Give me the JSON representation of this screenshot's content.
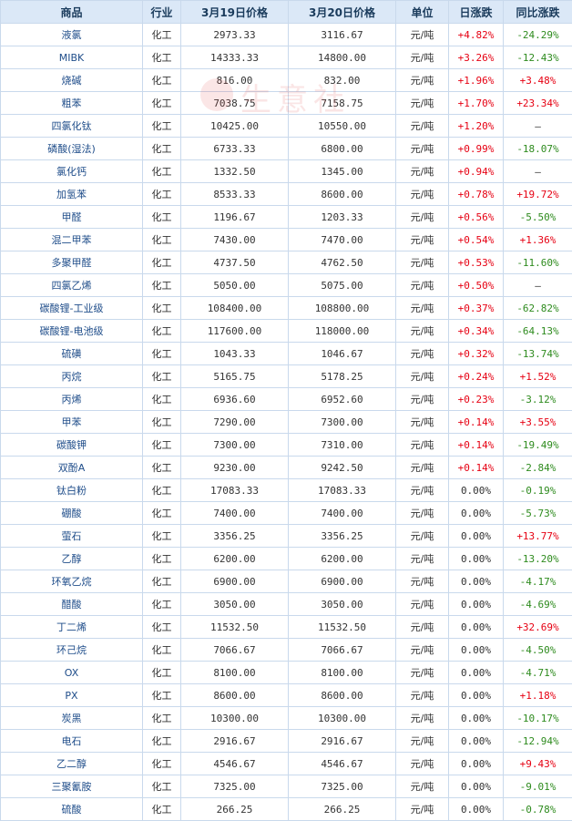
{
  "headers": [
    "商品",
    "行业",
    "3月19日价格",
    "3月20日价格",
    "单位",
    "日涨跌",
    "同比涨跌"
  ],
  "watermark": "生意社",
  "rows": [
    {
      "name": "液氯",
      "industry": "化工",
      "p19": "2973.33",
      "p20": "3116.67",
      "unit": "元/吨",
      "daily": "+4.82%",
      "yoy": "-24.29%"
    },
    {
      "name": "MIBK",
      "industry": "化工",
      "p19": "14333.33",
      "p20": "14800.00",
      "unit": "元/吨",
      "daily": "+3.26%",
      "yoy": "-12.43%"
    },
    {
      "name": "烧碱",
      "industry": "化工",
      "p19": "816.00",
      "p20": "832.00",
      "unit": "元/吨",
      "daily": "+1.96%",
      "yoy": "+3.48%"
    },
    {
      "name": "粗苯",
      "industry": "化工",
      "p19": "7038.75",
      "p20": "7158.75",
      "unit": "元/吨",
      "daily": "+1.70%",
      "yoy": "+23.34%"
    },
    {
      "name": "四氯化钛",
      "industry": "化工",
      "p19": "10425.00",
      "p20": "10550.00",
      "unit": "元/吨",
      "daily": "+1.20%",
      "yoy": "—"
    },
    {
      "name": "磷酸(湿法)",
      "industry": "化工",
      "p19": "6733.33",
      "p20": "6800.00",
      "unit": "元/吨",
      "daily": "+0.99%",
      "yoy": "-18.07%"
    },
    {
      "name": "氯化钙",
      "industry": "化工",
      "p19": "1332.50",
      "p20": "1345.00",
      "unit": "元/吨",
      "daily": "+0.94%",
      "yoy": "—"
    },
    {
      "name": "加氢苯",
      "industry": "化工",
      "p19": "8533.33",
      "p20": "8600.00",
      "unit": "元/吨",
      "daily": "+0.78%",
      "yoy": "+19.72%"
    },
    {
      "name": "甲醛",
      "industry": "化工",
      "p19": "1196.67",
      "p20": "1203.33",
      "unit": "元/吨",
      "daily": "+0.56%",
      "yoy": "-5.50%"
    },
    {
      "name": "混二甲苯",
      "industry": "化工",
      "p19": "7430.00",
      "p20": "7470.00",
      "unit": "元/吨",
      "daily": "+0.54%",
      "yoy": "+1.36%"
    },
    {
      "name": "多聚甲醛",
      "industry": "化工",
      "p19": "4737.50",
      "p20": "4762.50",
      "unit": "元/吨",
      "daily": "+0.53%",
      "yoy": "-11.60%"
    },
    {
      "name": "四氯乙烯",
      "industry": "化工",
      "p19": "5050.00",
      "p20": "5075.00",
      "unit": "元/吨",
      "daily": "+0.50%",
      "yoy": "—"
    },
    {
      "name": "碳酸锂-工业级",
      "industry": "化工",
      "p19": "108400.00",
      "p20": "108800.00",
      "unit": "元/吨",
      "daily": "+0.37%",
      "yoy": "-62.82%"
    },
    {
      "name": "碳酸锂-电池级",
      "industry": "化工",
      "p19": "117600.00",
      "p20": "118000.00",
      "unit": "元/吨",
      "daily": "+0.34%",
      "yoy": "-64.13%"
    },
    {
      "name": "硫磺",
      "industry": "化工",
      "p19": "1043.33",
      "p20": "1046.67",
      "unit": "元/吨",
      "daily": "+0.32%",
      "yoy": "-13.74%"
    },
    {
      "name": "丙烷",
      "industry": "化工",
      "p19": "5165.75",
      "p20": "5178.25",
      "unit": "元/吨",
      "daily": "+0.24%",
      "yoy": "+1.52%"
    },
    {
      "name": "丙烯",
      "industry": "化工",
      "p19": "6936.60",
      "p20": "6952.60",
      "unit": "元/吨",
      "daily": "+0.23%",
      "yoy": "-3.12%"
    },
    {
      "name": "甲苯",
      "industry": "化工",
      "p19": "7290.00",
      "p20": "7300.00",
      "unit": "元/吨",
      "daily": "+0.14%",
      "yoy": "+3.55%"
    },
    {
      "name": "碳酸钾",
      "industry": "化工",
      "p19": "7300.00",
      "p20": "7310.00",
      "unit": "元/吨",
      "daily": "+0.14%",
      "yoy": "-19.49%"
    },
    {
      "name": "双酚A",
      "industry": "化工",
      "p19": "9230.00",
      "p20": "9242.50",
      "unit": "元/吨",
      "daily": "+0.14%",
      "yoy": "-2.84%"
    },
    {
      "name": "钛白粉",
      "industry": "化工",
      "p19": "17083.33",
      "p20": "17083.33",
      "unit": "元/吨",
      "daily": "0.00%",
      "yoy": "-0.19%"
    },
    {
      "name": "硼酸",
      "industry": "化工",
      "p19": "7400.00",
      "p20": "7400.00",
      "unit": "元/吨",
      "daily": "0.00%",
      "yoy": "-5.73%"
    },
    {
      "name": "萤石",
      "industry": "化工",
      "p19": "3356.25",
      "p20": "3356.25",
      "unit": "元/吨",
      "daily": "0.00%",
      "yoy": "+13.77%"
    },
    {
      "name": "乙醇",
      "industry": "化工",
      "p19": "6200.00",
      "p20": "6200.00",
      "unit": "元/吨",
      "daily": "0.00%",
      "yoy": "-13.20%"
    },
    {
      "name": "环氧乙烷",
      "industry": "化工",
      "p19": "6900.00",
      "p20": "6900.00",
      "unit": "元/吨",
      "daily": "0.00%",
      "yoy": "-4.17%"
    },
    {
      "name": "醋酸",
      "industry": "化工",
      "p19": "3050.00",
      "p20": "3050.00",
      "unit": "元/吨",
      "daily": "0.00%",
      "yoy": "-4.69%"
    },
    {
      "name": "丁二烯",
      "industry": "化工",
      "p19": "11532.50",
      "p20": "11532.50",
      "unit": "元/吨",
      "daily": "0.00%",
      "yoy": "+32.69%"
    },
    {
      "name": "环己烷",
      "industry": "化工",
      "p19": "7066.67",
      "p20": "7066.67",
      "unit": "元/吨",
      "daily": "0.00%",
      "yoy": "-4.50%"
    },
    {
      "name": "OX",
      "industry": "化工",
      "p19": "8100.00",
      "p20": "8100.00",
      "unit": "元/吨",
      "daily": "0.00%",
      "yoy": "-4.71%"
    },
    {
      "name": "PX",
      "industry": "化工",
      "p19": "8600.00",
      "p20": "8600.00",
      "unit": "元/吨",
      "daily": "0.00%",
      "yoy": "+1.18%"
    },
    {
      "name": "炭黑",
      "industry": "化工",
      "p19": "10300.00",
      "p20": "10300.00",
      "unit": "元/吨",
      "daily": "0.00%",
      "yoy": "-10.17%"
    },
    {
      "name": "电石",
      "industry": "化工",
      "p19": "2916.67",
      "p20": "2916.67",
      "unit": "元/吨",
      "daily": "0.00%",
      "yoy": "-12.94%"
    },
    {
      "name": "乙二醇",
      "industry": "化工",
      "p19": "4546.67",
      "p20": "4546.67",
      "unit": "元/吨",
      "daily": "0.00%",
      "yoy": "+9.43%"
    },
    {
      "name": "三聚氰胺",
      "industry": "化工",
      "p19": "7325.00",
      "p20": "7325.00",
      "unit": "元/吨",
      "daily": "0.00%",
      "yoy": "-9.01%"
    },
    {
      "name": "硫酸",
      "industry": "化工",
      "p19": "266.25",
      "p20": "266.25",
      "unit": "元/吨",
      "daily": "0.00%",
      "yoy": "-0.78%"
    }
  ]
}
